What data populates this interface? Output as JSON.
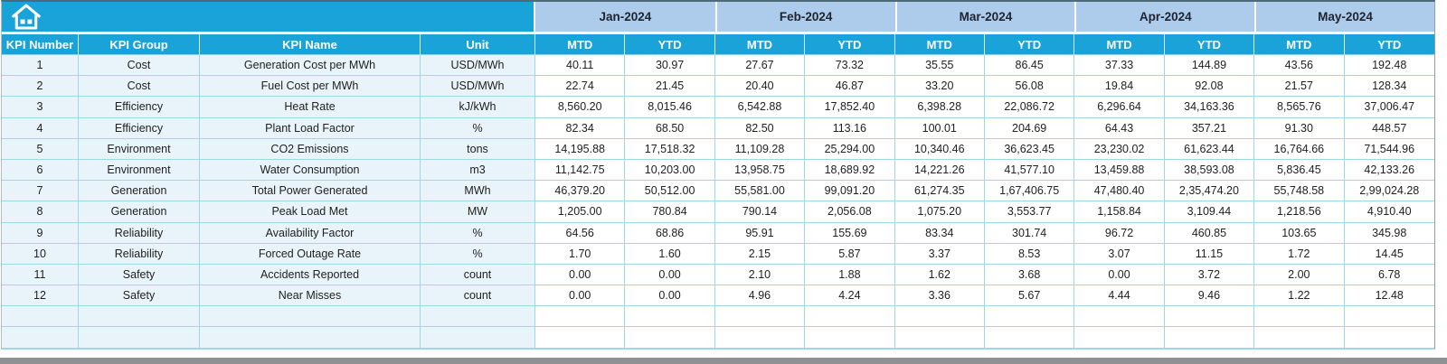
{
  "table": {
    "left_headers": [
      "KPI Number",
      "KPI Group",
      "KPI Name",
      "Unit"
    ],
    "months": [
      "Jan-2024",
      "Feb-2024",
      "Mar-2024",
      "Apr-2024",
      "May-2024"
    ],
    "sub_headers": [
      "MTD",
      "YTD"
    ],
    "rows": [
      {
        "num": "1",
        "group": "Cost",
        "name": "Generation Cost per MWh",
        "unit": "USD/MWh",
        "values": [
          "40.11",
          "30.97",
          "27.67",
          "73.32",
          "35.55",
          "86.45",
          "37.33",
          "144.89",
          "43.56",
          "192.48"
        ]
      },
      {
        "num": "2",
        "group": "Cost",
        "name": "Fuel Cost per MWh",
        "unit": "USD/MWh",
        "values": [
          "22.74",
          "21.45",
          "20.40",
          "46.87",
          "33.20",
          "56.08",
          "19.84",
          "92.08",
          "21.57",
          "128.34"
        ]
      },
      {
        "num": "3",
        "group": "Efficiency",
        "name": "Heat Rate",
        "unit": "kJ/kWh",
        "values": [
          "8,560.20",
          "8,015.46",
          "6,542.88",
          "17,852.40",
          "6,398.28",
          "22,086.72",
          "6,296.64",
          "34,163.36",
          "8,565.76",
          "37,006.47"
        ]
      },
      {
        "num": "4",
        "group": "Efficiency",
        "name": "Plant Load Factor",
        "unit": "%",
        "values": [
          "82.34",
          "68.50",
          "82.50",
          "113.16",
          "100.01",
          "204.69",
          "64.43",
          "357.21",
          "91.30",
          "448.57"
        ]
      },
      {
        "num": "5",
        "group": "Environment",
        "name": "CO2 Emissions",
        "unit": "tons",
        "values": [
          "14,195.88",
          "17,518.32",
          "11,109.28",
          "25,294.00",
          "10,340.46",
          "36,623.45",
          "23,230.02",
          "61,623.44",
          "16,764.66",
          "71,544.96"
        ]
      },
      {
        "num": "6",
        "group": "Environment",
        "name": "Water Consumption",
        "unit": "m3",
        "values": [
          "11,142.75",
          "10,203.00",
          "13,958.75",
          "18,689.92",
          "14,221.26",
          "41,577.10",
          "13,459.88",
          "38,593.08",
          "5,836.45",
          "42,133.26"
        ]
      },
      {
        "num": "7",
        "group": "Generation",
        "name": "Total Power Generated",
        "unit": "MWh",
        "values": [
          "46,379.20",
          "50,512.00",
          "55,581.00",
          "99,091.20",
          "61,274.35",
          "1,67,406.75",
          "47,480.40",
          "2,35,474.20",
          "55,748.58",
          "2,99,024.28"
        ]
      },
      {
        "num": "8",
        "group": "Generation",
        "name": "Peak Load Met",
        "unit": "MW",
        "values": [
          "1,205.00",
          "780.84",
          "790.14",
          "2,056.08",
          "1,075.20",
          "3,553.77",
          "1,158.84",
          "3,109.44",
          "1,218.56",
          "4,910.40"
        ]
      },
      {
        "num": "9",
        "group": "Reliability",
        "name": "Availability Factor",
        "unit": "%",
        "values": [
          "64.56",
          "68.86",
          "95.91",
          "155.69",
          "83.34",
          "301.74",
          "96.72",
          "460.85",
          "103.65",
          "345.98"
        ]
      },
      {
        "num": "10",
        "group": "Reliability",
        "name": "Forced Outage Rate",
        "unit": "%",
        "values": [
          "1.70",
          "1.60",
          "2.15",
          "5.87",
          "3.37",
          "8.53",
          "3.07",
          "11.15",
          "1.72",
          "14.45"
        ]
      },
      {
        "num": "11",
        "group": "Safety",
        "name": "Accidents Reported",
        "unit": "count",
        "values": [
          "0.00",
          "0.00",
          "2.10",
          "1.88",
          "1.62",
          "3.68",
          "0.00",
          "3.72",
          "2.00",
          "6.78"
        ]
      },
      {
        "num": "12",
        "group": "Safety",
        "name": "Near Misses",
        "unit": "count",
        "values": [
          "0.00",
          "0.00",
          "4.96",
          "4.24",
          "3.36",
          "5.67",
          "4.44",
          "9.46",
          "1.22",
          "12.48"
        ]
      }
    ],
    "empty_rows": 2
  },
  "icons": {
    "home": "home-icon"
  },
  "colors": {
    "accent_cyan": "#1aa3d8",
    "month_header_blue": "#adcbea",
    "row_tint_blue": "#e9f4fa",
    "grid_line_teal": "#9ed8e5",
    "window_edge_gray": "#8f9193",
    "header_text": "#ffffff",
    "body_text": "#212121"
  }
}
